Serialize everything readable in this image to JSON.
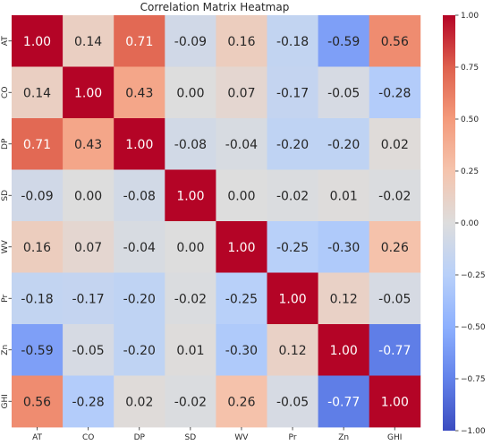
{
  "chart_data": {
    "type": "heatmap",
    "title": "Correlation Matrix Heatmap",
    "x_categories": [
      "AT",
      "CO",
      "DP",
      "SD",
      "WV",
      "Pr",
      "Zn",
      "GHI"
    ],
    "y_categories": [
      "AT",
      "CO",
      "DP",
      "SD",
      "WV",
      "Pr",
      "Zn",
      "GHI"
    ],
    "values": [
      [
        1.0,
        0.14,
        0.71,
        -0.09,
        0.16,
        -0.18,
        -0.59,
        0.56
      ],
      [
        0.14,
        1.0,
        0.43,
        0.0,
        0.07,
        -0.17,
        -0.05,
        -0.28
      ],
      [
        0.71,
        0.43,
        1.0,
        -0.08,
        -0.04,
        -0.2,
        -0.2,
        0.02
      ],
      [
        -0.09,
        0.0,
        -0.08,
        1.0,
        0.0,
        -0.02,
        0.01,
        -0.02
      ],
      [
        0.16,
        0.07,
        -0.04,
        0.0,
        1.0,
        -0.25,
        -0.3,
        0.26
      ],
      [
        -0.18,
        -0.17,
        -0.2,
        -0.02,
        -0.25,
        1.0,
        0.12,
        -0.05
      ],
      [
        -0.59,
        -0.05,
        -0.2,
        0.01,
        -0.3,
        0.12,
        1.0,
        -0.77
      ],
      [
        0.56,
        -0.28,
        0.02,
        -0.02,
        0.26,
        -0.05,
        -0.77,
        1.0
      ]
    ],
    "value_range": [
      -1.0,
      1.0
    ],
    "colormap": "coolwarm",
    "colorbar_ticks": [
      "1.00",
      "0.75",
      "0.50",
      "0.25",
      "0.00",
      "−0.25",
      "−0.50",
      "−0.75",
      "−1.00"
    ],
    "colorbar_tick_values": [
      1.0,
      0.75,
      0.5,
      0.25,
      0.0,
      -0.25,
      -0.5,
      -0.75,
      -1.0
    ],
    "annotations_format": "0.00",
    "grid": false
  }
}
